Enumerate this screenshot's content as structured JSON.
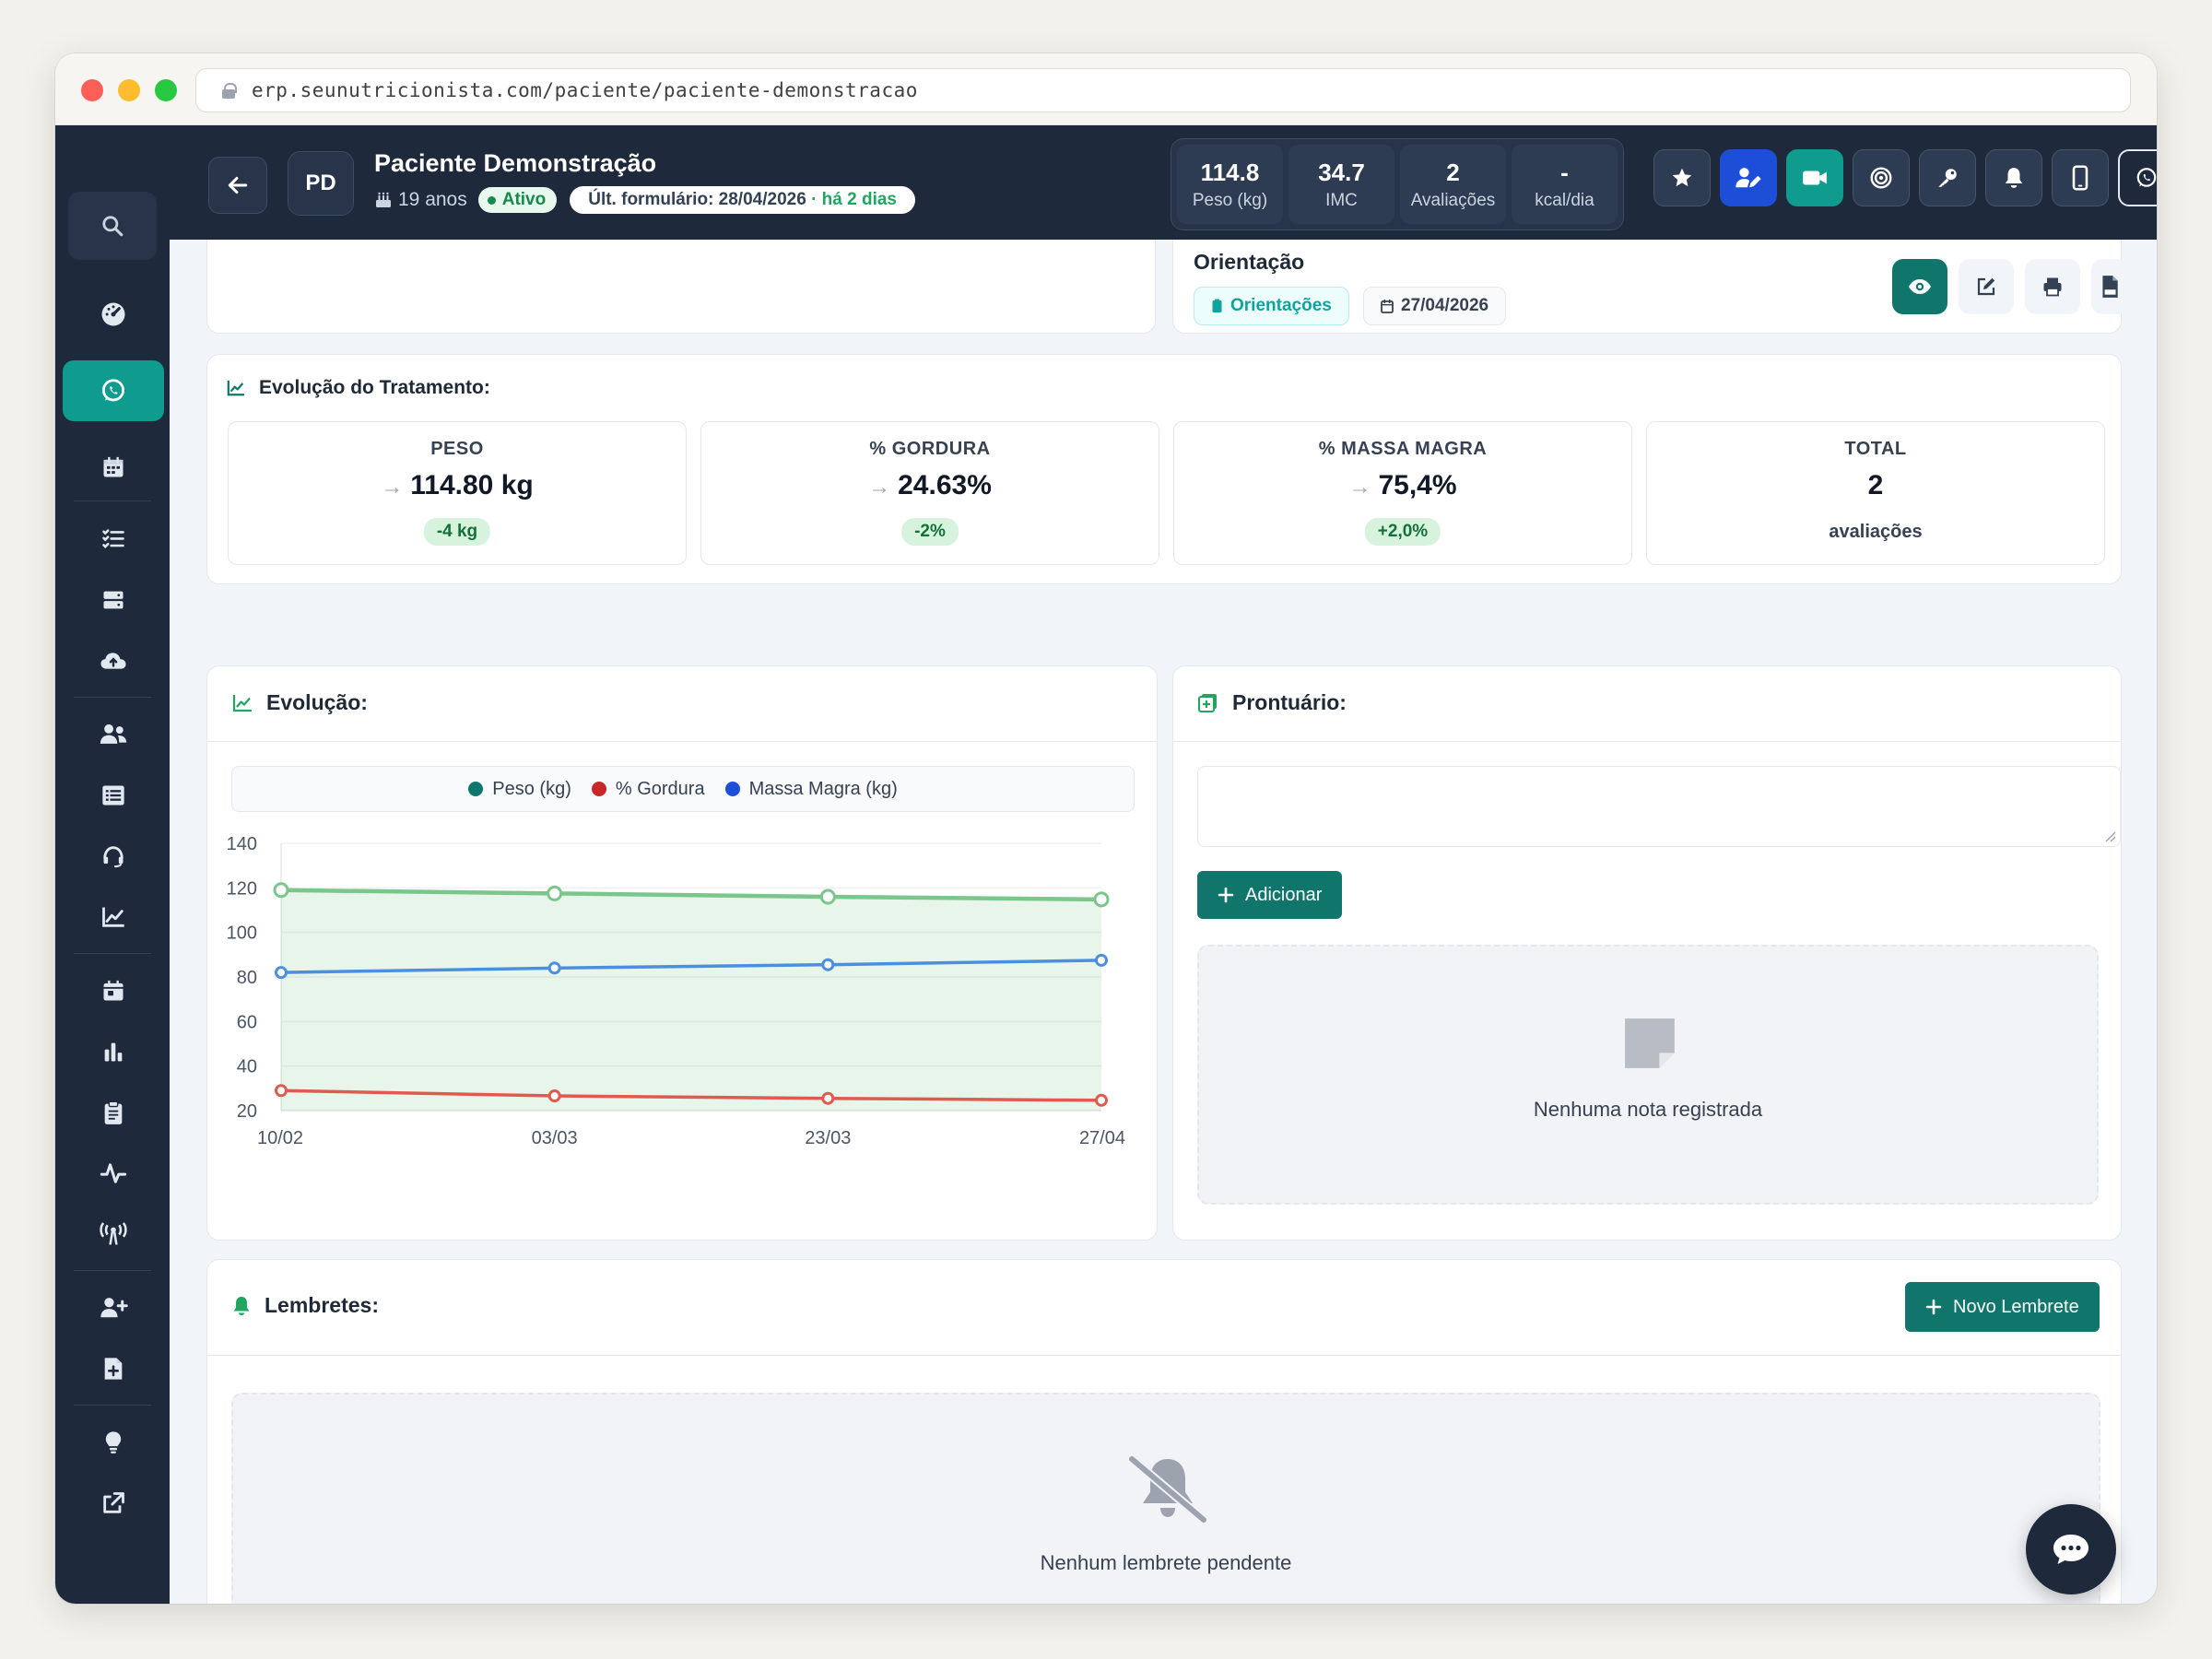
{
  "browser": {
    "url": "erp.seunutricionista.com/paciente/paciente-demonstracao"
  },
  "patient": {
    "initials": "PD",
    "name": "Paciente Demonstração",
    "age": "19 anos",
    "status": "Ativo",
    "last_form": "Últ. formulário: 28/04/2026",
    "last_form_ago": "· há 2 dias"
  },
  "stats": [
    {
      "value": "114.8",
      "label": "Peso (kg)"
    },
    {
      "value": "34.7",
      "label": "IMC"
    },
    {
      "value": "2",
      "label": "Avaliações"
    },
    {
      "value": "-",
      "label": "kcal/dia"
    }
  ],
  "top_actions": [
    "star-icon",
    "user-edit-icon",
    "video-icon",
    "target-icon",
    "key-icon",
    "bell-icon",
    "mobile-icon",
    "whatsapp-icon"
  ],
  "sidebar": {
    "items": [
      "dashboard-icon",
      "whatsapp-icon",
      "calendar-icon",
      "tasks-icon",
      "server-icon",
      "cloud-upload-icon",
      "users-icon",
      "list-icon",
      "headset-icon",
      "chart-line-icon",
      "calendar-day-icon",
      "chart-bar-icon",
      "clipboard-icon",
      "wave-icon",
      "broadcast-icon",
      "user-plus-icon",
      "file-plus-icon",
      "lightbulb-icon",
      "external-link-icon"
    ],
    "active": "whatsapp-icon"
  },
  "orientacao": {
    "title": "Orientação",
    "tag": "Orientações",
    "date": "27/04/2026"
  },
  "treatment": {
    "title": "Evolução do Tratamento:",
    "metrics": [
      {
        "title": "PESO",
        "value": "114.80 kg",
        "badge": "-4 kg"
      },
      {
        "title": "% GORDURA",
        "value": "24.63%",
        "badge": "-2%"
      },
      {
        "title": "% MASSA MAGRA",
        "value": "75,4%",
        "badge": "+2,0%"
      },
      {
        "title": "TOTAL",
        "value": "2",
        "sub": "avaliações"
      }
    ]
  },
  "evolucao": {
    "title": "Evolução:"
  },
  "chart_data": {
    "type": "line",
    "categories": [
      "10/02",
      "03/03",
      "23/03",
      "27/04"
    ],
    "series": [
      {
        "name": "Peso (kg)",
        "values": [
          119,
          117.5,
          116,
          114.8
        ],
        "color": "#7bc68b",
        "fill": true
      },
      {
        "name": "% Gordura",
        "values": [
          29,
          26.6,
          25.5,
          24.63
        ],
        "color": "#e05a4f"
      },
      {
        "name": "Massa Magra (kg)",
        "values": [
          82,
          84,
          85.5,
          87.5
        ],
        "color": "#4a8fe0"
      }
    ],
    "legend_colors": [
      "#0f766e",
      "#c62828",
      "#1d4ed8"
    ],
    "yticks": [
      140,
      120,
      100,
      80,
      60,
      40,
      20
    ],
    "ylim": [
      20,
      140
    ],
    "grid": true,
    "legend": "top"
  },
  "prontuario": {
    "title": "Prontuário:",
    "add_label": "Adicionar",
    "empty": "Nenhuma nota registrada"
  },
  "lembretes": {
    "title": "Lembretes:",
    "new_label": "Novo Lembrete",
    "empty": "Nenhum lembrete pendente"
  }
}
